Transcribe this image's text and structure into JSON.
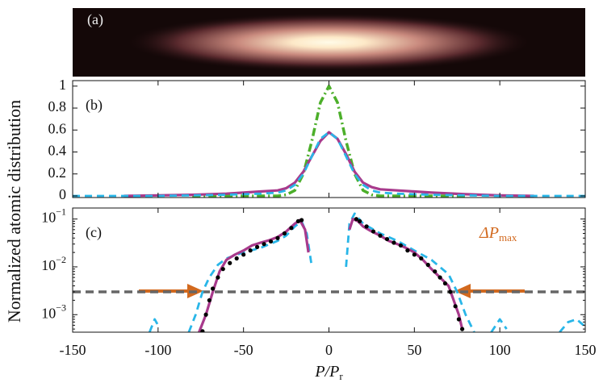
{
  "chart_data": [
    {
      "type": "image",
      "label": "(a)"
    },
    {
      "type": "line",
      "label": "(b)",
      "ylabel": "Normalized atomic distribution",
      "x": [
        -150,
        -120,
        -100,
        -80,
        -60,
        -50,
        -40,
        -30,
        -25,
        -20,
        -15,
        -10,
        -5,
        0,
        5,
        10,
        15,
        20,
        25,
        30,
        40,
        50,
        60,
        80,
        100,
        120,
        150
      ],
      "series": [
        {
          "color": "#4caf2a",
          "style": "dashdot",
          "values": [
            null,
            null,
            null,
            0,
            0,
            0,
            0,
            0,
            0.01,
            0.05,
            0.2,
            0.5,
            0.85,
            1,
            0.85,
            0.5,
            0.2,
            0.05,
            0.01,
            0,
            0,
            0,
            0,
            0,
            null,
            null,
            null
          ]
        },
        {
          "color": "#a83a8c",
          "style": "solid",
          "values": [
            null,
            0,
            0.005,
            0.01,
            0.02,
            0.03,
            0.04,
            0.05,
            0.07,
            0.12,
            0.22,
            0.36,
            0.5,
            0.58,
            0.52,
            0.38,
            0.22,
            0.12,
            0.08,
            0.06,
            0.05,
            0.04,
            0.03,
            0.015,
            0.005,
            0,
            null
          ]
        },
        {
          "color": "#29b6e8",
          "style": "dashed",
          "values": [
            0,
            0,
            0,
            0.005,
            0.01,
            0.015,
            0.02,
            0.03,
            0.05,
            0.1,
            0.2,
            0.36,
            0.52,
            0.58,
            0.52,
            0.36,
            0.2,
            0.1,
            0.05,
            0.03,
            0.02,
            0.015,
            0.01,
            0.005,
            0,
            0,
            0
          ]
        }
      ],
      "xlim": [
        -150,
        150
      ],
      "ylim": [
        -0.015,
        1.05
      ],
      "xticks": [
        -150,
        -100,
        -50,
        0,
        50,
        100,
        150
      ],
      "yticks": [
        0,
        0.2,
        0.4,
        0.6,
        0.8,
        1
      ]
    },
    {
      "type": "line",
      "label": "(c)",
      "yscale": "log",
      "xlabel": {
        "text": "P/P",
        "subscript": "r"
      },
      "series": [
        {
          "color": "#29b6e8",
          "style": "dashed",
          "x": [
            -105,
            -102,
            -100,
            null,
            -82,
            -78,
            -74,
            -70,
            -65,
            -60,
            -50,
            -40,
            -30,
            -25,
            -20,
            -16,
            -13,
            -10,
            null,
            10,
            12,
            15,
            20,
            30,
            40,
            50,
            60,
            70,
            75,
            80,
            85,
            null,
            95,
            100,
            104,
            null,
            135,
            140,
            145,
            149
          ],
          "values": [
            0.00043,
            0.0008,
            0.0006,
            null,
            0.00043,
            0.001,
            0.003,
            0.006,
            0.011,
            0.015,
            0.02,
            0.025,
            0.035,
            0.045,
            0.07,
            0.09,
            0.05,
            0.01,
            null,
            0.01,
            0.08,
            0.13,
            0.08,
            0.05,
            0.035,
            0.022,
            0.014,
            0.007,
            0.003,
            0.001,
            0.00043,
            null,
            0.00043,
            0.0008,
            0.0005,
            null,
            0.00043,
            0.0007,
            0.0008,
            0.0006
          ]
        },
        {
          "color": "#a83a8c",
          "style": "solid",
          "x": [
            -76,
            -72,
            -68,
            -64,
            -60,
            -55,
            -50,
            -45,
            -40,
            -35,
            -30,
            -25,
            -20,
            -17,
            -14,
            -12,
            null,
            12,
            14,
            17,
            20,
            25,
            30,
            35,
            40,
            45,
            50,
            55,
            60,
            65,
            70,
            73,
            76,
            78
          ],
          "values": [
            0.00043,
            0.001,
            0.003,
            0.008,
            0.014,
            0.018,
            0.022,
            0.028,
            0.032,
            0.036,
            0.042,
            0.055,
            0.08,
            0.095,
            0.06,
            0.02,
            null,
            0.06,
            0.1,
            0.09,
            0.07,
            0.055,
            0.045,
            0.035,
            0.03,
            0.025,
            0.02,
            0.014,
            0.009,
            0.006,
            0.004,
            0.002,
            0.001,
            0.0005
          ]
        },
        {
          "color": "#000000",
          "style": "dots",
          "x": [
            -74,
            -72,
            -70,
            -68,
            -65,
            -62,
            -58,
            -54,
            -50,
            -46,
            -42,
            -38,
            -34,
            -30,
            -26,
            -22,
            -18,
            -16,
            16,
            18,
            22,
            26,
            30,
            34,
            38,
            42,
            46,
            50,
            54,
            58,
            62,
            65,
            68,
            71,
            74,
            76,
            78
          ],
          "values": [
            0.00045,
            0.001,
            0.002,
            0.0035,
            0.006,
            0.009,
            0.012,
            0.015,
            0.018,
            0.022,
            0.026,
            0.03,
            0.034,
            0.04,
            0.05,
            0.065,
            0.09,
            0.095,
            0.1,
            0.09,
            0.07,
            0.055,
            0.045,
            0.038,
            0.032,
            0.028,
            0.022,
            0.018,
            0.015,
            0.011,
            0.008,
            0.006,
            0.0045,
            0.003,
            0.0015,
            0.0008,
            0.0005
          ]
        }
      ],
      "hline": {
        "value": 0.003,
        "color": "#666666"
      },
      "annotation": {
        "text": "ΔP",
        "subscript": "max",
        "color": "#d2691e"
      },
      "xlim": [
        -150,
        150
      ],
      "ylim": [
        0.00043,
        0.17
      ],
      "xticks": [
        -150,
        -100,
        -50,
        0,
        50,
        100,
        150
      ],
      "yticks": [
        {
          "value": 0.001,
          "label": "10",
          "exponent": "−3"
        },
        {
          "value": 0.01,
          "label": "10",
          "exponent": "−2"
        },
        {
          "value": 0.1,
          "label": "10",
          "exponent": "−1"
        }
      ]
    }
  ]
}
